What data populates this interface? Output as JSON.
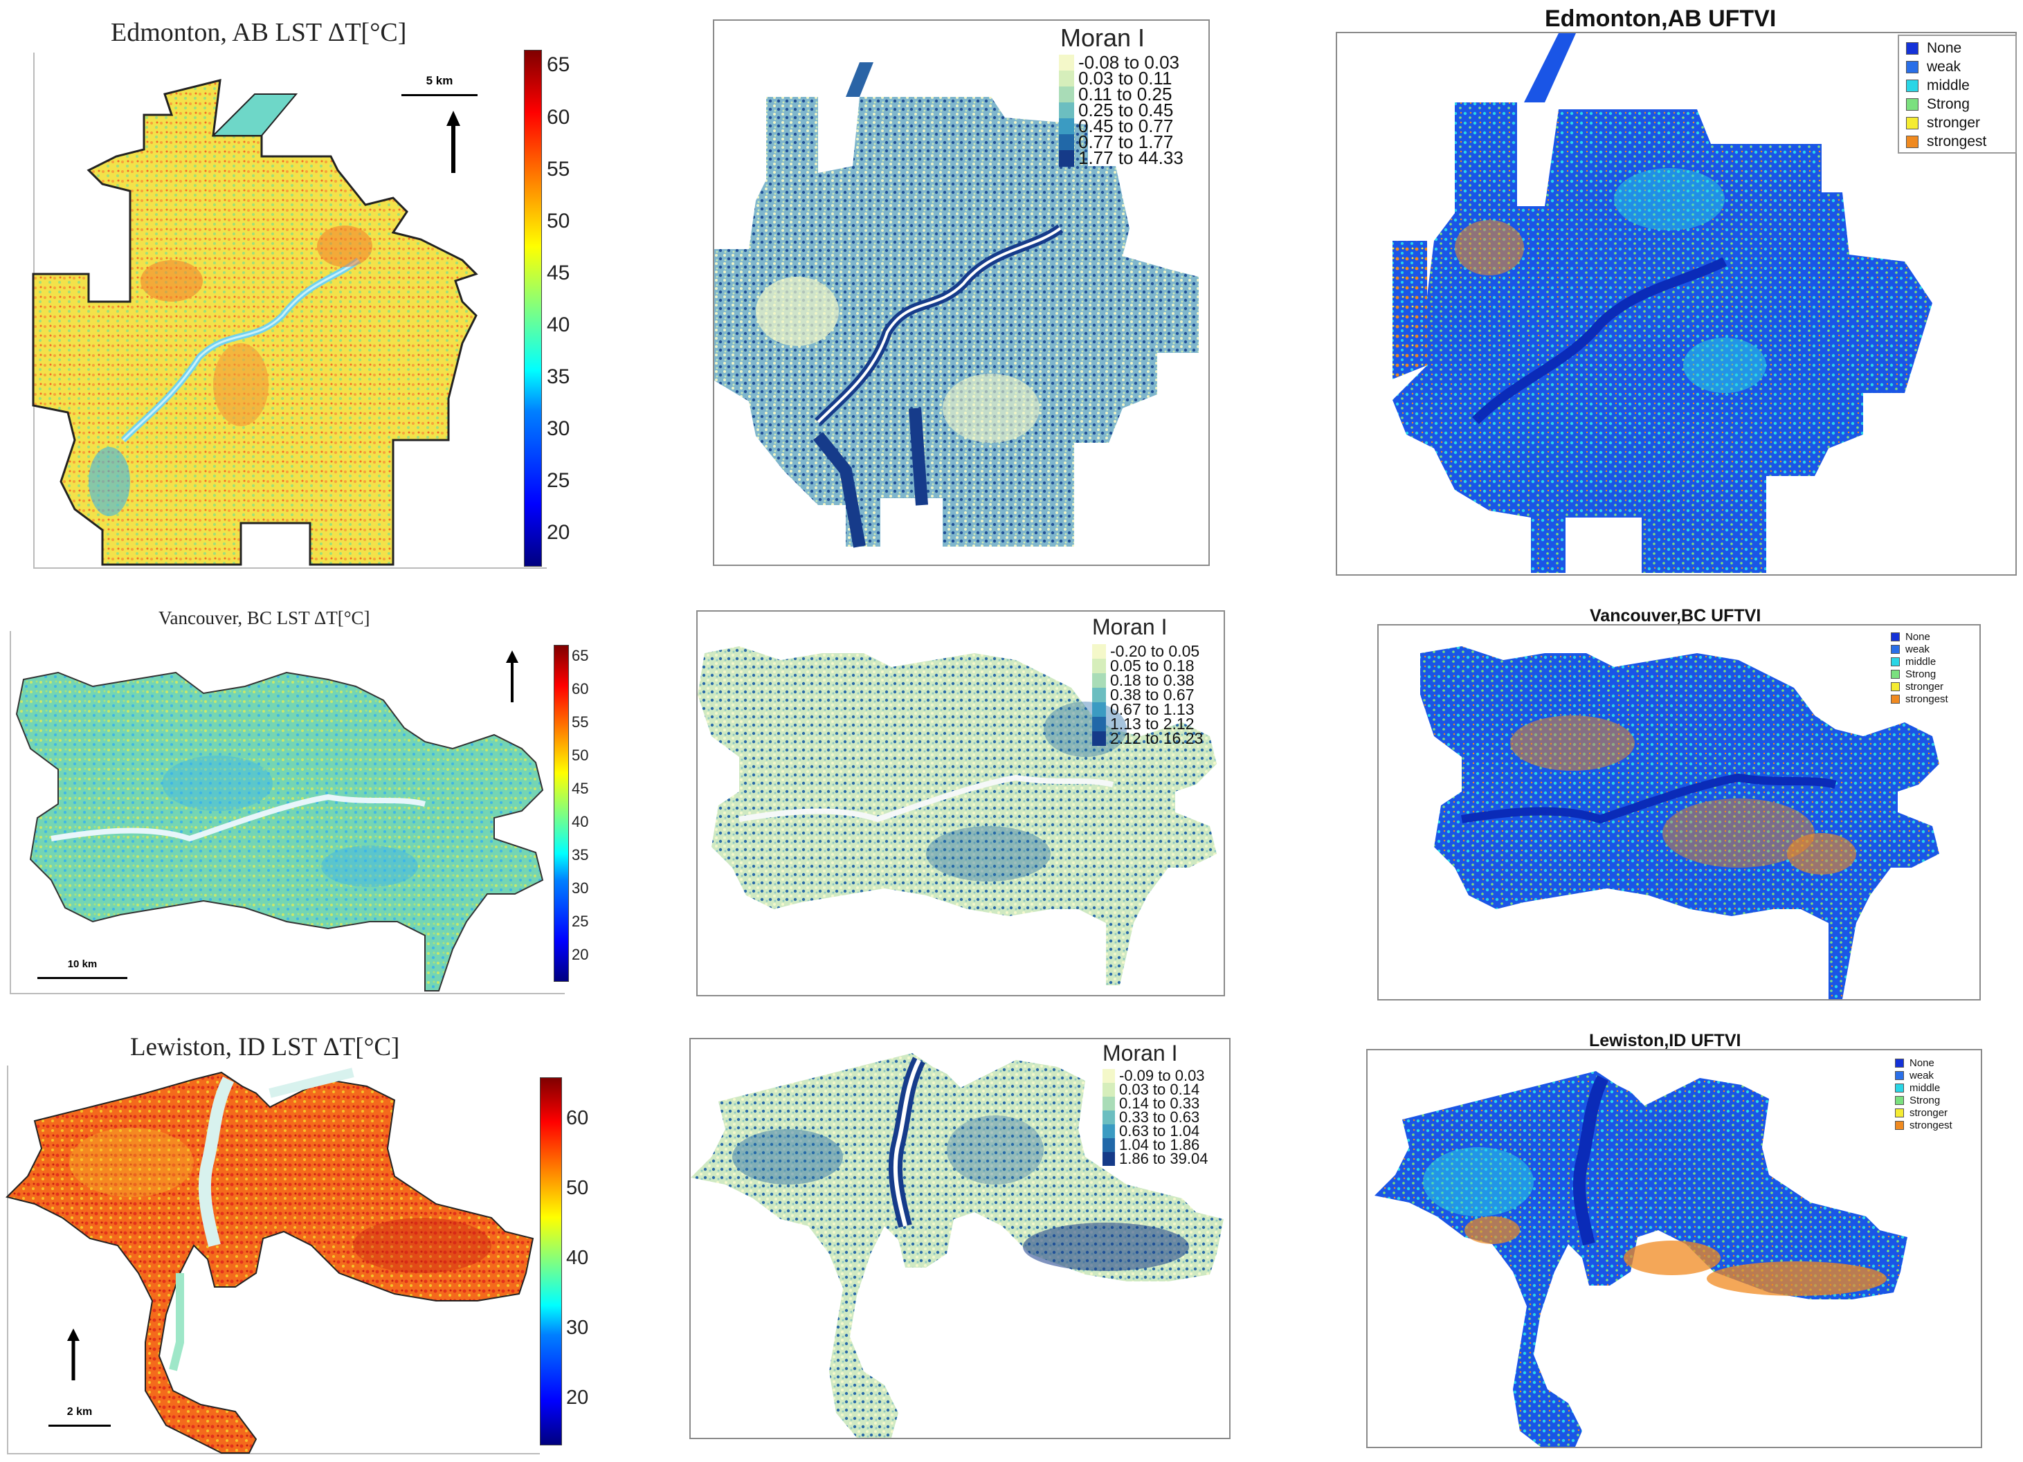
{
  "colors": {
    "jet": [
      "#00007f",
      "#0000ff",
      "#0080ff",
      "#00ffff",
      "#80ff80",
      "#ffff00",
      "#ff8000",
      "#ff0000",
      "#7f0000"
    ],
    "moran": [
      "#f4f8c9",
      "#d6eebb",
      "#a9dcb7",
      "#6cbec0",
      "#3b9bc2",
      "#2168a8",
      "#153a88"
    ],
    "uftvi": [
      "#1432d8",
      "#2a6fe8",
      "#2ad6e6",
      "#7be07f",
      "#f5ec32",
      "#f08a20"
    ],
    "river": "#d9f2fa",
    "edmonton_fill": "#f3e24a",
    "vancouver_fill": "#74d5b4",
    "lewiston_fill": "#f46a1c",
    "moran_map_fill": "#7fb6cc",
    "uftvi_map_fill": "#1a55e6"
  },
  "edmonton": {
    "lst": {
      "title": "Edmonton, AB LST ΔT[°C]",
      "scale_label": "5 km",
      "ticks": [
        "65",
        "60",
        "55",
        "50",
        "45",
        "40",
        "35",
        "30",
        "25",
        "20"
      ]
    },
    "moran": {
      "title": "Moran I",
      "legend": [
        "-0.08 to 0.03",
        "0.03 to 0.11",
        "0.11 to 0.25",
        "0.25 to 0.45",
        "0.45 to 0.77",
        "0.77 to 1.77",
        "1.77 to 44.33"
      ]
    },
    "uftvi": {
      "title": "Edmonton,AB UFTVI",
      "legend": [
        "None",
        "weak",
        "middle",
        "Strong",
        "stronger",
        "strongest"
      ]
    }
  },
  "vancouver": {
    "lst": {
      "title": "Vancouver, BC LST ΔT[°C]",
      "scale_label": "10 km",
      "ticks": [
        "65",
        "60",
        "55",
        "50",
        "45",
        "40",
        "35",
        "30",
        "25",
        "20"
      ]
    },
    "moran": {
      "title": "Moran I",
      "legend": [
        "-0.20 to 0.05",
        "0.05 to 0.18",
        "0.18 to 0.38",
        "0.38 to 0.67",
        "0.67 to 1.13",
        "1.13 to 2.12",
        "2.12 to 16.23"
      ]
    },
    "uftvi": {
      "title": "Vancouver,BC UFTVI",
      "legend": [
        "None",
        "weak",
        "middle",
        "Strong",
        "stronger",
        "strongest"
      ]
    }
  },
  "lewiston": {
    "lst": {
      "title": "Lewiston, ID LST ΔT[°C]",
      "scale_label": "2 km",
      "ticks": [
        "60",
        "50",
        "40",
        "30",
        "20"
      ]
    },
    "moran": {
      "title": "Moran I",
      "legend": [
        "-0.09 to 0.03",
        "0.03 to 0.14",
        "0.14 to 0.33",
        "0.33 to 0.63",
        "0.63 to 1.04",
        "1.04 to 1.86",
        "1.86 to 39.04"
      ]
    },
    "uftvi": {
      "title": "Lewiston,ID UFTVI",
      "legend": [
        "None",
        "weak",
        "middle",
        "Strong",
        "stronger",
        "strongest"
      ]
    }
  }
}
